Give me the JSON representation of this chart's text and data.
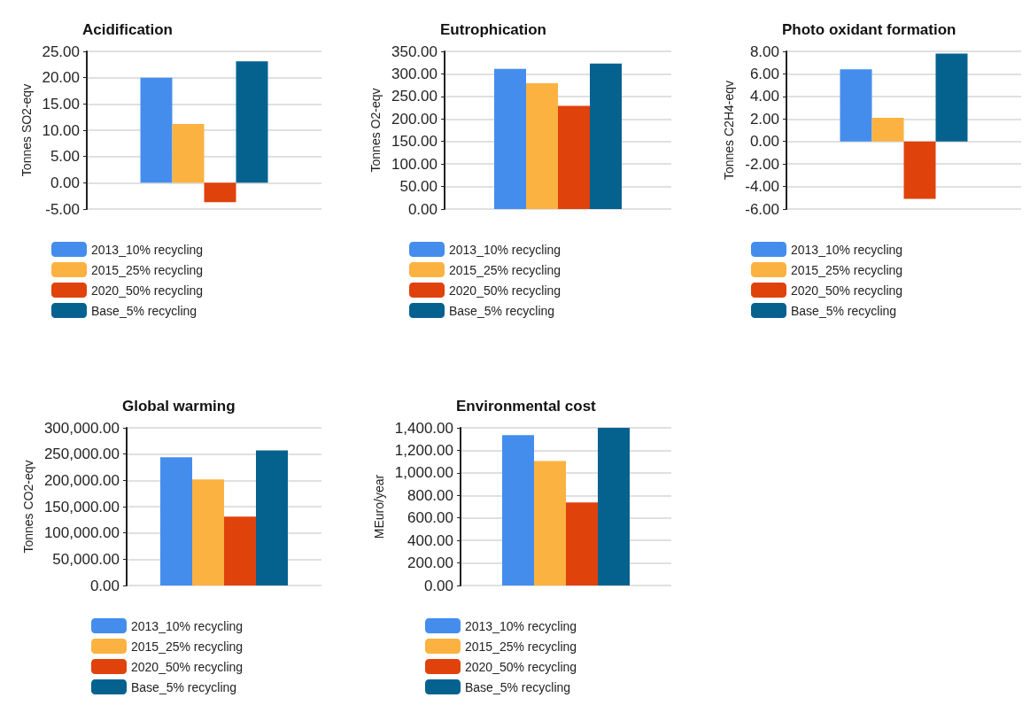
{
  "chart_data": [
    {
      "type": "bar",
      "title": "Acidification",
      "ylabel": "Tonnes SO2-eqv",
      "categories": [
        null
      ],
      "legend": "bottom",
      "grid": "y",
      "ylim": [
        -5,
        25
      ],
      "yticks": [
        {
          "value": -5,
          "label": "-5.00"
        },
        {
          "value": 0,
          "label": "0.00"
        },
        {
          "value": 5,
          "label": "5.00"
        },
        {
          "value": 10,
          "label": "10.00"
        },
        {
          "value": 15,
          "label": "15.00"
        },
        {
          "value": 20,
          "label": "20.00"
        },
        {
          "value": 25,
          "label": "25.00"
        }
      ],
      "series": [
        {
          "name": "2013_10% recycling",
          "color": "#448ded",
          "values": [
            20.0
          ]
        },
        {
          "name": "2015_25% recycling",
          "color": "#fbb240",
          "values": [
            11.2
          ]
        },
        {
          "name": "2020_50% recycling",
          "color": "#e0420b",
          "values": [
            -3.7
          ]
        },
        {
          "name": "Base_5% recycling",
          "color": "#05628f",
          "values": [
            23.1
          ]
        }
      ]
    },
    {
      "type": "bar",
      "title": "Eutrophication",
      "ylabel": "Tonnes O2-eqv",
      "categories": [
        null
      ],
      "legend": "bottom",
      "grid": "y",
      "ylim": [
        0,
        350
      ],
      "yticks": [
        {
          "value": 0,
          "label": "0.00"
        },
        {
          "value": 50,
          "label": "50.00"
        },
        {
          "value": 100,
          "label": "100.00"
        },
        {
          "value": 150,
          "label": "150.00"
        },
        {
          "value": 200,
          "label": "200.00"
        },
        {
          "value": 250,
          "label": "250.00"
        },
        {
          "value": 300,
          "label": "300.00"
        },
        {
          "value": 350,
          "label": "350.00"
        }
      ],
      "series": [
        {
          "name": "2013_10% recycling",
          "color": "#448ded",
          "values": [
            311
          ]
        },
        {
          "name": "2015_25% recycling",
          "color": "#fbb240",
          "values": [
            279
          ]
        },
        {
          "name": "2020_50% recycling",
          "color": "#e0420b",
          "values": [
            229
          ]
        },
        {
          "name": "Base_5% recycling",
          "color": "#05628f",
          "values": [
            323
          ]
        }
      ]
    },
    {
      "type": "bar",
      "title": "Photo oxidant formation",
      "ylabel": "Tonnes C2H4-eqv",
      "categories": [
        null
      ],
      "legend": "bottom",
      "grid": "y",
      "ylim": [
        -6,
        8
      ],
      "yticks": [
        {
          "value": -6,
          "label": "-6.00"
        },
        {
          "value": -4,
          "label": "-4.00"
        },
        {
          "value": -2,
          "label": "-2.00"
        },
        {
          "value": 0,
          "label": "0.00"
        },
        {
          "value": 2,
          "label": "2.00"
        },
        {
          "value": 4,
          "label": "4.00"
        },
        {
          "value": 6,
          "label": "6.00"
        },
        {
          "value": 8,
          "label": "8.00"
        }
      ],
      "series": [
        {
          "name": "2013_10% recycling",
          "color": "#448ded",
          "values": [
            6.4
          ]
        },
        {
          "name": "2015_25% recycling",
          "color": "#fbb240",
          "values": [
            2.1
          ]
        },
        {
          "name": "2020_50% recycling",
          "color": "#e0420b",
          "values": [
            -5.1
          ]
        },
        {
          "name": "Base_5% recycling",
          "color": "#05628f",
          "values": [
            7.8
          ]
        }
      ]
    },
    {
      "type": "bar",
      "title": "Global warming",
      "ylabel": "Tonnes CO2-eqv",
      "categories": [
        null
      ],
      "legend": "bottom",
      "grid": "y",
      "ylim": [
        0,
        300000
      ],
      "yticks": [
        {
          "value": 0,
          "label": "0.00"
        },
        {
          "value": 50000,
          "label": "50,000.00"
        },
        {
          "value": 100000,
          "label": "100,000.00"
        },
        {
          "value": 150000,
          "label": "150,000.00"
        },
        {
          "value": 200000,
          "label": "200,000.00"
        },
        {
          "value": 250000,
          "label": "250,000.00"
        },
        {
          "value": 300000,
          "label": "300,000.00"
        }
      ],
      "series": [
        {
          "name": "2013_10% recycling",
          "color": "#448ded",
          "values": [
            244000
          ]
        },
        {
          "name": "2015_25% recycling",
          "color": "#fbb240",
          "values": [
            202000
          ]
        },
        {
          "name": "2020_50% recycling",
          "color": "#e0420b",
          "values": [
            131000
          ]
        },
        {
          "name": "Base_5% recycling",
          "color": "#05628f",
          "values": [
            257000
          ]
        }
      ]
    },
    {
      "type": "bar",
      "title": "Environmental cost",
      "ylabel": "MEuro/year",
      "categories": [
        null
      ],
      "legend": "bottom",
      "grid": "y",
      "ylim": [
        0,
        1400
      ],
      "yticks": [
        {
          "value": 0,
          "label": "0.00"
        },
        {
          "value": 200,
          "label": "200.00"
        },
        {
          "value": 400,
          "label": "400.00"
        },
        {
          "value": 600,
          "label": "600.00"
        },
        {
          "value": 800,
          "label": "800.00"
        },
        {
          "value": 1000,
          "label": "1,000.00"
        },
        {
          "value": 1200,
          "label": "1,200.00"
        },
        {
          "value": 1400,
          "label": "1,400.00"
        }
      ],
      "series": [
        {
          "name": "2013_10% recycling",
          "color": "#448ded",
          "values": [
            1335
          ]
        },
        {
          "name": "2015_25% recycling",
          "color": "#fbb240",
          "values": [
            1106
          ]
        },
        {
          "name": "2020_50% recycling",
          "color": "#e0420b",
          "values": [
            737
          ]
        },
        {
          "name": "Base_5% recycling",
          "color": "#05628f",
          "values": [
            1400
          ]
        }
      ]
    }
  ]
}
